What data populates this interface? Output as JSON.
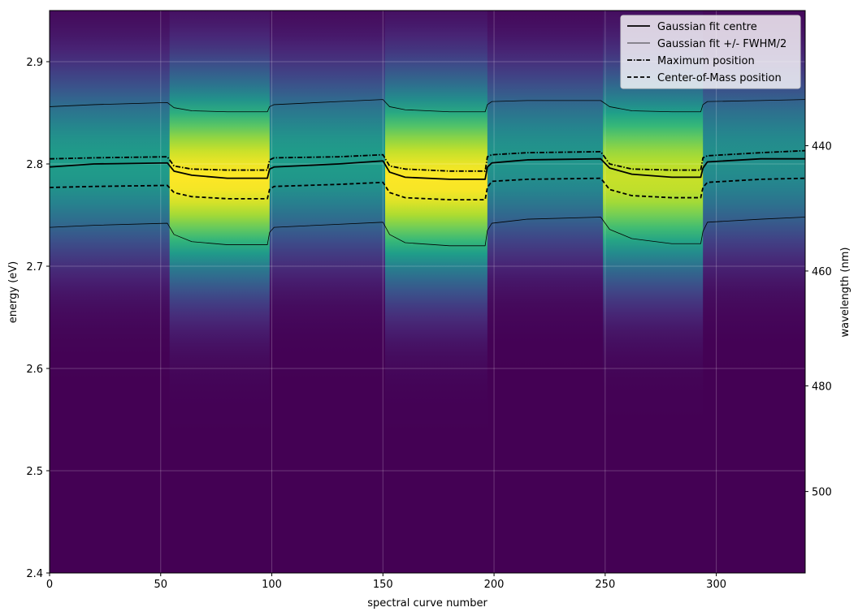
{
  "chart_data": {
    "type": "heatmap",
    "xlabel": "spectral curve number",
    "ylabel": "energy (eV)",
    "ylabel_right": "wavelength (nm)",
    "xlim": [
      0,
      340
    ],
    "ylim": [
      2.4,
      2.95
    ],
    "x_ticks": [
      0,
      50,
      100,
      150,
      200,
      250,
      300
    ],
    "y_ticks": [
      2.4,
      2.5,
      2.6,
      2.7,
      2.8,
      2.9
    ],
    "y_tick_labels": [
      "2.4",
      "2.5",
      "2.6",
      "2.7",
      "2.8",
      "2.9"
    ],
    "right_ticks_nm": [
      440,
      460,
      480,
      500
    ],
    "grid": true,
    "colormap": "viridis",
    "legend_position": "upper-right",
    "segments": [
      {
        "x_start": 0,
        "x_end": 54,
        "state": "dim",
        "center": 2.801,
        "peak": 0.55,
        "width": 0.06
      },
      {
        "x_start": 54,
        "x_end": 99,
        "state": "bright",
        "center": 2.786,
        "peak": 1.0,
        "width": 0.066
      },
      {
        "x_start": 99,
        "x_end": 151,
        "state": "dim",
        "center": 2.803,
        "peak": 0.55,
        "width": 0.06
      },
      {
        "x_start": 151,
        "x_end": 197,
        "state": "bright",
        "center": 2.784,
        "peak": 1.0,
        "width": 0.066
      },
      {
        "x_start": 197,
        "x_end": 249,
        "state": "dim",
        "center": 2.805,
        "peak": 0.52,
        "width": 0.058
      },
      {
        "x_start": 249,
        "x_end": 294,
        "state": "bright",
        "center": 2.786,
        "peak": 0.92,
        "width": 0.064
      },
      {
        "x_start": 294,
        "x_end": 340,
        "state": "dim",
        "center": 2.805,
        "peak": 0.5,
        "width": 0.058
      }
    ],
    "series": [
      {
        "name": "Gaussian fit centre",
        "style": "solid",
        "line_width": 1.8,
        "x": [
          0,
          20,
          53,
          56,
          64,
          80,
          98,
          99,
          101,
          130,
          150,
          153,
          160,
          180,
          196,
          197,
          199,
          215,
          248,
          252,
          262,
          280,
          293,
          294,
          296,
          320,
          340
        ],
        "y": [
          2.797,
          2.8,
          2.801,
          2.793,
          2.789,
          2.786,
          2.786,
          2.795,
          2.797,
          2.8,
          2.803,
          2.792,
          2.787,
          2.785,
          2.785,
          2.797,
          2.801,
          2.804,
          2.805,
          2.796,
          2.79,
          2.787,
          2.787,
          2.796,
          2.802,
          2.805,
          2.805
        ]
      },
      {
        "name": "Gaussian fit +/- FWHM/2",
        "style": "thin",
        "line_width": 0.8,
        "x": [
          0,
          20,
          53,
          56,
          64,
          80,
          98,
          99,
          101,
          130,
          150,
          153,
          160,
          180,
          196,
          197,
          199,
          215,
          248,
          252,
          262,
          280,
          293,
          294,
          296,
          320,
          340
        ],
        "y": [
          2.856,
          2.858,
          2.86,
          2.855,
          2.852,
          2.851,
          2.851,
          2.856,
          2.858,
          2.861,
          2.863,
          2.856,
          2.853,
          2.851,
          2.851,
          2.858,
          2.861,
          2.862,
          2.862,
          2.856,
          2.852,
          2.851,
          2.851,
          2.858,
          2.861,
          2.862,
          2.863
        ]
      },
      {
        "name": "",
        "style": "thin",
        "line_width": 0.8,
        "x": [
          0,
          20,
          53,
          56,
          64,
          80,
          98,
          99,
          101,
          130,
          150,
          153,
          160,
          180,
          196,
          197,
          199,
          215,
          248,
          252,
          262,
          280,
          293,
          294,
          296,
          320,
          340
        ],
        "y": [
          2.738,
          2.74,
          2.742,
          2.731,
          2.724,
          2.721,
          2.721,
          2.733,
          2.738,
          2.741,
          2.743,
          2.731,
          2.723,
          2.72,
          2.72,
          2.735,
          2.742,
          2.746,
          2.748,
          2.736,
          2.727,
          2.722,
          2.722,
          2.734,
          2.743,
          2.746,
          2.748
        ]
      },
      {
        "name": "Maximum position",
        "style": "dashdot",
        "line_width": 1.8,
        "x": [
          0,
          20,
          53,
          56,
          64,
          80,
          98,
          99,
          101,
          130,
          150,
          153,
          160,
          180,
          196,
          197,
          199,
          215,
          248,
          252,
          262,
          280,
          293,
          294,
          296,
          320,
          340
        ],
        "y": [
          2.805,
          2.806,
          2.807,
          2.798,
          2.795,
          2.794,
          2.794,
          2.804,
          2.806,
          2.807,
          2.809,
          2.798,
          2.795,
          2.793,
          2.793,
          2.807,
          2.809,
          2.811,
          2.812,
          2.8,
          2.795,
          2.794,
          2.794,
          2.806,
          2.808,
          2.811,
          2.813
        ]
      },
      {
        "name": "Center-of-Mass position",
        "style": "dashed",
        "line_width": 1.8,
        "x": [
          0,
          20,
          53,
          56,
          64,
          80,
          98,
          99,
          101,
          130,
          150,
          153,
          160,
          180,
          196,
          197,
          199,
          215,
          248,
          252,
          262,
          280,
          293,
          294,
          296,
          320,
          340
        ],
        "y": [
          2.777,
          2.778,
          2.779,
          2.772,
          2.768,
          2.766,
          2.766,
          2.775,
          2.778,
          2.78,
          2.782,
          2.772,
          2.767,
          2.765,
          2.765,
          2.777,
          2.783,
          2.785,
          2.786,
          2.775,
          2.769,
          2.767,
          2.767,
          2.777,
          2.782,
          2.785,
          2.786
        ]
      }
    ]
  }
}
